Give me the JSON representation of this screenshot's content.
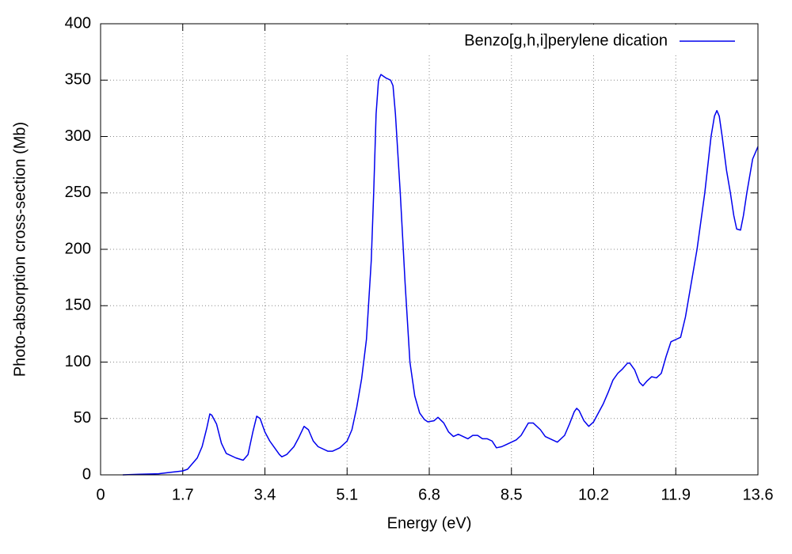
{
  "chart_data": {
    "type": "line",
    "xlabel": "Energy (eV)",
    "ylabel": "Photo-absorption cross-section (Mb)",
    "xlim": [
      0,
      13.6
    ],
    "xticks": [
      0,
      1.7,
      3.4,
      5.1,
      6.8,
      8.5,
      10.2,
      11.9,
      13.6
    ],
    "ylim": [
      0,
      400
    ],
    "yticks": [
      0,
      50,
      100,
      150,
      200,
      250,
      300,
      350,
      400
    ],
    "grid": true,
    "legend": "upper right",
    "series": [
      {
        "name": "Benzo[g,h,i]perylene dication",
        "color": "#0000ee",
        "x": [
          0.46,
          0.8,
          1.2,
          1.4,
          1.6,
          1.7,
          1.8,
          2.0,
          2.1,
          2.2,
          2.26,
          2.3,
          2.4,
          2.5,
          2.6,
          2.8,
          2.95,
          3.05,
          3.15,
          3.23,
          3.3,
          3.4,
          3.5,
          3.6,
          3.7,
          3.75,
          3.85,
          4.0,
          4.1,
          4.21,
          4.3,
          4.4,
          4.5,
          4.7,
          4.8,
          4.95,
          5.1,
          5.2,
          5.3,
          5.4,
          5.5,
          5.6,
          5.65,
          5.7,
          5.75,
          5.8,
          5.9,
          6.0,
          6.05,
          6.1,
          6.2,
          6.3,
          6.4,
          6.5,
          6.6,
          6.7,
          6.77,
          6.9,
          6.98,
          7.1,
          7.2,
          7.3,
          7.4,
          7.5,
          7.6,
          7.7,
          7.8,
          7.9,
          8.0,
          8.1,
          8.19,
          8.3,
          8.4,
          8.5,
          8.6,
          8.7,
          8.85,
          8.95,
          9.1,
          9.2,
          9.3,
          9.45,
          9.6,
          9.7,
          9.8,
          9.85,
          9.9,
          10.0,
          10.1,
          10.2,
          10.3,
          10.4,
          10.5,
          10.6,
          10.7,
          10.8,
          10.9,
          10.95,
          11.05,
          11.15,
          11.22,
          11.3,
          11.4,
          11.5,
          11.6,
          11.7,
          11.8,
          11.9,
          12.0,
          12.1,
          12.2,
          12.34,
          12.5,
          12.63,
          12.7,
          12.75,
          12.8,
          12.86,
          12.95,
          13.03,
          13.1,
          13.16,
          13.24,
          13.3,
          13.37,
          13.49,
          13.6
        ],
        "values": [
          0,
          0.5,
          1,
          2,
          3,
          3.5,
          5,
          15,
          25,
          42,
          54,
          53,
          45,
          28,
          19,
          15,
          13,
          18,
          38,
          52,
          50,
          38,
          30,
          24,
          18,
          16,
          18,
          25,
          33,
          43,
          40,
          30,
          25,
          21,
          21,
          24,
          30,
          40,
          60,
          85,
          120,
          190,
          250,
          320,
          350,
          355,
          352,
          350,
          345,
          320,
          250,
          170,
          100,
          70,
          55,
          49,
          47,
          48,
          51,
          46,
          38,
          34,
          36,
          34,
          32,
          35,
          35,
          32,
          32,
          30,
          24,
          25,
          27,
          29,
          31,
          35,
          46,
          46,
          40,
          34,
          32,
          29,
          35,
          45,
          56,
          59,
          57,
          48,
          43,
          47,
          55,
          63,
          73,
          84,
          90,
          94,
          99,
          99,
          93,
          82,
          79,
          83,
          87,
          86,
          90,
          105,
          118,
          120,
          122,
          140,
          165,
          200,
          250,
          300,
          318,
          323,
          318,
          300,
          270,
          250,
          230,
          218,
          217,
          230,
          250,
          280,
          291
        ]
      }
    ]
  }
}
